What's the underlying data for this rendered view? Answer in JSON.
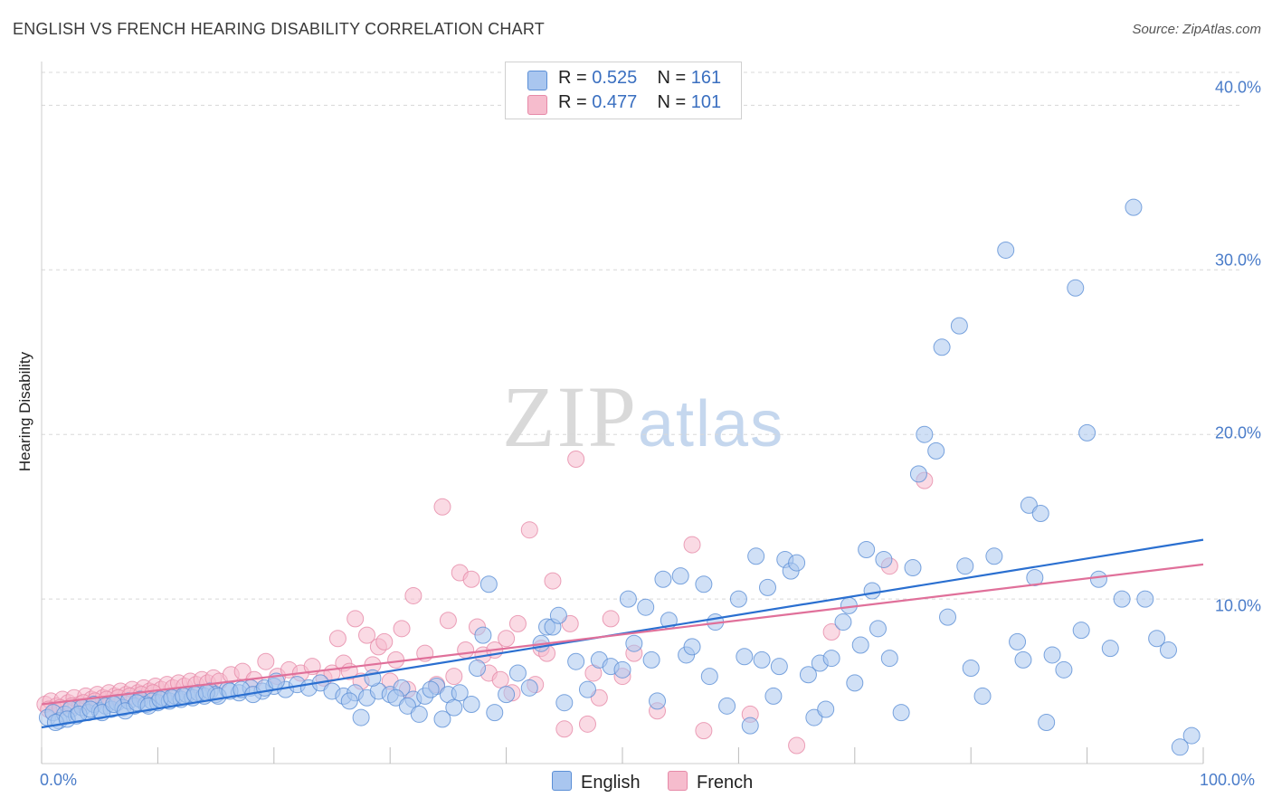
{
  "title": "ENGLISH VS FRENCH HEARING DISABILITY CORRELATION CHART",
  "source": "Source: ZipAtlas.com",
  "watermark": {
    "zip": "ZIP",
    "atlas": "atlas"
  },
  "colors": {
    "english_fill": "#a9c6ef",
    "english_stroke": "#5b8fd6",
    "english_line": "#2a6fd0",
    "french_fill": "#f6bccd",
    "french_stroke": "#e68aa8",
    "french_line": "#e0709a",
    "grid": "#d8d8d8",
    "tick_text": "#4a7cc9"
  },
  "legend": {
    "english": {
      "r_label": "R = ",
      "r_value": "0.525",
      "n_label": "N = ",
      "n_value": "161"
    },
    "french": {
      "r_label": "R = ",
      "r_value": "0.477",
      "n_label": "N = ",
      "n_value": "101"
    }
  },
  "chart_data": {
    "type": "scatter",
    "title": "ENGLISH VS FRENCH HEARING DISABILITY CORRELATION CHART",
    "xlabel": "",
    "ylabel": "Hearing Disability",
    "xlim": [
      0,
      100
    ],
    "ylim": [
      0,
      42
    ],
    "x_tick_labels": [
      "0.0%",
      "100.0%"
    ],
    "y_ticks": [
      10,
      20,
      30,
      40
    ],
    "y_tick_labels": [
      "10.0%",
      "20.0%",
      "30.0%",
      "40.0%"
    ],
    "grid": true,
    "legend_position": "top-center",
    "series": [
      {
        "name": "English",
        "trend": {
          "x": [
            0,
            100
          ],
          "y": [
            2.2,
            13.6
          ]
        },
        "points": [
          [
            0.5,
            2.8
          ],
          [
            1,
            3.1
          ],
          [
            1.5,
            2.6
          ],
          [
            2,
            3.0
          ],
          [
            2.5,
            3.3
          ],
          [
            3,
            2.9
          ],
          [
            3.5,
            3.4
          ],
          [
            4,
            3.1
          ],
          [
            4.5,
            3.6
          ],
          [
            5,
            3.2
          ],
          [
            5.5,
            3.5
          ],
          [
            6,
            3.3
          ],
          [
            6.5,
            3.7
          ],
          [
            7,
            3.4
          ],
          [
            7.5,
            3.8
          ],
          [
            8,
            3.5
          ],
          [
            8.5,
            3.9
          ],
          [
            9,
            3.6
          ],
          [
            9.5,
            3.8
          ],
          [
            10,
            3.7
          ],
          [
            10.5,
            4.0
          ],
          [
            11,
            3.8
          ],
          [
            11.5,
            4.1
          ],
          [
            12,
            3.9
          ],
          [
            12.5,
            4.2
          ],
          [
            13,
            4.0
          ],
          [
            13.5,
            4.3
          ],
          [
            14,
            4.1
          ],
          [
            14.5,
            4.4
          ],
          [
            15,
            4.2
          ],
          [
            16,
            4.5
          ],
          [
            17,
            4.3
          ],
          [
            18,
            4.6
          ],
          [
            19,
            4.4
          ],
          [
            20,
            4.7
          ],
          [
            21,
            4.5
          ],
          [
            22,
            4.8
          ],
          [
            23,
            4.6
          ],
          [
            24,
            4.9
          ],
          [
            25,
            4.4
          ],
          [
            1.2,
            2.5
          ],
          [
            2.2,
            2.7
          ],
          [
            3.2,
            3.0
          ],
          [
            4.2,
            3.3
          ],
          [
            5.2,
            3.1
          ],
          [
            6.2,
            3.6
          ],
          [
            7.2,
            3.2
          ],
          [
            8.2,
            3.7
          ],
          [
            9.2,
            3.5
          ],
          [
            10.2,
            3.9
          ],
          [
            11.2,
            4.0
          ],
          [
            12.2,
            4.1
          ],
          [
            13.2,
            4.2
          ],
          [
            14.2,
            4.3
          ],
          [
            15.2,
            4.1
          ],
          [
            16.2,
            4.4
          ],
          [
            17.2,
            4.5
          ],
          [
            18.2,
            4.2
          ],
          [
            19.2,
            4.6
          ],
          [
            20.2,
            5.0
          ],
          [
            26,
            4.1
          ],
          [
            27,
            4.3
          ],
          [
            28,
            4.0
          ],
          [
            29,
            4.4
          ],
          [
            30,
            4.2
          ],
          [
            31,
            4.6
          ],
          [
            32,
            3.9
          ],
          [
            33,
            4.1
          ],
          [
            34,
            4.7
          ],
          [
            35,
            4.2
          ],
          [
            26.5,
            3.8
          ],
          [
            27.5,
            2.8
          ],
          [
            28.5,
            5.2
          ],
          [
            30.5,
            4.0
          ],
          [
            31.5,
            3.5
          ],
          [
            32.5,
            3.0
          ],
          [
            33.5,
            4.5
          ],
          [
            34.5,
            2.7
          ],
          [
            35.5,
            3.4
          ],
          [
            36,
            4.3
          ],
          [
            37,
            3.6
          ],
          [
            37.5,
            5.8
          ],
          [
            38,
            7.8
          ],
          [
            38.5,
            10.9
          ],
          [
            39,
            3.1
          ],
          [
            40,
            4.2
          ],
          [
            41,
            5.5
          ],
          [
            42,
            4.6
          ],
          [
            43,
            7.3
          ],
          [
            43.5,
            8.3
          ],
          [
            44,
            8.3
          ],
          [
            44.5,
            9.0
          ],
          [
            45,
            3.7
          ],
          [
            46,
            6.2
          ],
          [
            47,
            4.5
          ],
          [
            48,
            6.3
          ],
          [
            49,
            5.9
          ],
          [
            50,
            5.7
          ],
          [
            50.5,
            10.0
          ],
          [
            51,
            7.3
          ],
          [
            52,
            9.5
          ],
          [
            52.5,
            6.3
          ],
          [
            53,
            3.8
          ],
          [
            53.5,
            11.2
          ],
          [
            54,
            8.7
          ],
          [
            55,
            11.4
          ],
          [
            55.5,
            6.6
          ],
          [
            56,
            7.1
          ],
          [
            57,
            10.9
          ],
          [
            57.5,
            5.3
          ],
          [
            58,
            8.6
          ],
          [
            59,
            3.5
          ],
          [
            60,
            10.0
          ],
          [
            60.5,
            6.5
          ],
          [
            61,
            2.3
          ],
          [
            61.5,
            12.6
          ],
          [
            62,
            6.3
          ],
          [
            62.5,
            10.7
          ],
          [
            63,
            4.1
          ],
          [
            63.5,
            5.9
          ],
          [
            64,
            12.4
          ],
          [
            64.5,
            11.7
          ],
          [
            65,
            12.2
          ],
          [
            66,
            5.4
          ],
          [
            66.5,
            2.8
          ],
          [
            67,
            6.1
          ],
          [
            67.5,
            3.3
          ],
          [
            68,
            6.4
          ],
          [
            69,
            8.6
          ],
          [
            69.5,
            9.6
          ],
          [
            70,
            4.9
          ],
          [
            70.5,
            7.2
          ],
          [
            71,
            13.0
          ],
          [
            71.5,
            10.5
          ],
          [
            72,
            8.2
          ],
          [
            72.5,
            12.4
          ],
          [
            73,
            6.4
          ],
          [
            74,
            3.1
          ],
          [
            75,
            11.9
          ],
          [
            75.5,
            17.6
          ],
          [
            76,
            20.0
          ],
          [
            77,
            19.0
          ],
          [
            77.5,
            25.3
          ],
          [
            78,
            8.9
          ],
          [
            79,
            26.6
          ],
          [
            79.5,
            12.0
          ],
          [
            80,
            5.8
          ],
          [
            81,
            4.1
          ],
          [
            82,
            12.6
          ],
          [
            83,
            31.2
          ],
          [
            84,
            7.4
          ],
          [
            84.5,
            6.3
          ],
          [
            85,
            15.7
          ],
          [
            85.5,
            11.3
          ],
          [
            86,
            15.2
          ],
          [
            86.5,
            2.5
          ],
          [
            87,
            6.6
          ],
          [
            88,
            5.7
          ],
          [
            89,
            28.9
          ],
          [
            89.5,
            8.1
          ],
          [
            90,
            20.1
          ],
          [
            91,
            11.2
          ],
          [
            92,
            7.0
          ],
          [
            93,
            10.0
          ],
          [
            94,
            33.8
          ],
          [
            95,
            10.0
          ],
          [
            96,
            7.6
          ],
          [
            97,
            6.9
          ],
          [
            98,
            1.0
          ],
          [
            99,
            1.7
          ]
        ]
      },
      {
        "name": "French",
        "trend": {
          "x": [
            0,
            100
          ],
          "y": [
            3.6,
            12.1
          ]
        },
        "points": [
          [
            0.3,
            3.6
          ],
          [
            0.8,
            3.8
          ],
          [
            1.3,
            3.5
          ],
          [
            1.8,
            3.9
          ],
          [
            2.3,
            3.7
          ],
          [
            2.8,
            4.0
          ],
          [
            3.3,
            3.6
          ],
          [
            3.8,
            4.1
          ],
          [
            4.3,
            3.9
          ],
          [
            4.8,
            4.2
          ],
          [
            5.3,
            4.0
          ],
          [
            5.8,
            4.3
          ],
          [
            6.3,
            4.1
          ],
          [
            6.8,
            4.4
          ],
          [
            7.3,
            4.2
          ],
          [
            7.8,
            4.5
          ],
          [
            8.3,
            4.3
          ],
          [
            8.8,
            4.6
          ],
          [
            9.3,
            4.4
          ],
          [
            9.8,
            4.7
          ],
          [
            10.3,
            4.5
          ],
          [
            10.8,
            4.8
          ],
          [
            11.3,
            4.6
          ],
          [
            11.8,
            4.9
          ],
          [
            12.3,
            4.7
          ],
          [
            12.8,
            5.0
          ],
          [
            13.3,
            4.8
          ],
          [
            13.8,
            5.1
          ],
          [
            14.3,
            4.9
          ],
          [
            14.8,
            5.2
          ],
          [
            15.3,
            5.0
          ],
          [
            16.3,
            5.4
          ],
          [
            17.3,
            5.6
          ],
          [
            18.3,
            5.1
          ],
          [
            19.3,
            6.2
          ],
          [
            20.3,
            5.3
          ],
          [
            21.3,
            5.7
          ],
          [
            22.3,
            5.5
          ],
          [
            23.3,
            5.9
          ],
          [
            24.3,
            5.2
          ],
          [
            0.6,
            3.3
          ],
          [
            1.6,
            3.4
          ],
          [
            2.6,
            3.5
          ],
          [
            3.6,
            3.7
          ],
          [
            4.6,
            3.8
          ],
          [
            5.6,
            3.9
          ],
          [
            6.6,
            4.0
          ],
          [
            7.6,
            4.1
          ],
          [
            8.6,
            4.2
          ],
          [
            9.6,
            4.3
          ],
          [
            25,
            5.5
          ],
          [
            25.5,
            7.6
          ],
          [
            26,
            6.1
          ],
          [
            26.5,
            5.6
          ],
          [
            27,
            8.8
          ],
          [
            27.5,
            5.0
          ],
          [
            28,
            7.8
          ],
          [
            28.5,
            6.0
          ],
          [
            29,
            7.1
          ],
          [
            29.5,
            7.4
          ],
          [
            30,
            5.0
          ],
          [
            30.5,
            6.3
          ],
          [
            31,
            8.2
          ],
          [
            31.5,
            4.5
          ],
          [
            32,
            10.2
          ],
          [
            33,
            6.7
          ],
          [
            34,
            4.8
          ],
          [
            34.5,
            15.6
          ],
          [
            35,
            8.7
          ],
          [
            35.5,
            5.3
          ],
          [
            36,
            11.6
          ],
          [
            36.5,
            6.9
          ],
          [
            37,
            11.2
          ],
          [
            37.5,
            8.3
          ],
          [
            38,
            6.6
          ],
          [
            38.5,
            5.5
          ],
          [
            39,
            6.9
          ],
          [
            39.5,
            5.1
          ],
          [
            40,
            7.6
          ],
          [
            40.5,
            4.3
          ],
          [
            41,
            8.5
          ],
          [
            42,
            14.2
          ],
          [
            42.5,
            4.8
          ],
          [
            43,
            7.0
          ],
          [
            43.5,
            6.7
          ],
          [
            44,
            11.1
          ],
          [
            45,
            2.1
          ],
          [
            45.5,
            8.5
          ],
          [
            46,
            18.5
          ],
          [
            47,
            2.4
          ],
          [
            47.5,
            5.5
          ],
          [
            48,
            4.0
          ],
          [
            49,
            8.8
          ],
          [
            50,
            5.3
          ],
          [
            51,
            6.7
          ],
          [
            53,
            3.2
          ],
          [
            56,
            13.3
          ],
          [
            57,
            2.0
          ],
          [
            61,
            3.0
          ],
          [
            65,
            1.1
          ],
          [
            68,
            8.0
          ],
          [
            73,
            12.0
          ],
          [
            76,
            17.2
          ]
        ]
      }
    ]
  }
}
